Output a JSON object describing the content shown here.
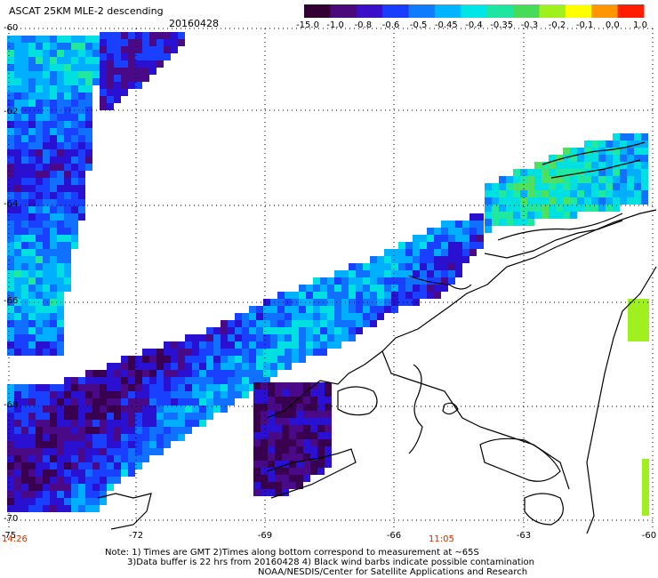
{
  "header": {
    "title": "ASCAT 25KM MLE-2 descending",
    "date": "20160428"
  },
  "colorbar": {
    "labels": [
      "-15.0",
      "-1.0",
      "-0.8",
      "-0.6",
      "-0.5",
      "-0.45",
      "-0.4",
      "-0.35",
      "-0.3",
      "-0.2",
      "-0.1",
      "0.0",
      "1.0"
    ],
    "colors": [
      "#330033",
      "#4b0a7a",
      "#3b0fc8",
      "#1a3cff",
      "#0f7cff",
      "#00b4ff",
      "#00e6e6",
      "#1ee6a0",
      "#46dc5a",
      "#a0f01e",
      "#ffff00",
      "#ff9600",
      "#ff1e00"
    ]
  },
  "axes": {
    "lat_labels": [
      "-60",
      "-62",
      "-64",
      "-66",
      "-68",
      "-70"
    ],
    "lon_labels": [
      "-75",
      "-72",
      "-69",
      "-66",
      "-63",
      "-60"
    ],
    "time_labels": [
      "14:26",
      "11:05"
    ]
  },
  "notes": {
    "line1": "Note: 1) Times are GMT 2)Times along bottom correspond to measurement at ~65S",
    "line2": "3)Data buffer is 22 hrs from 20160428 4) Black wind barbs indicate possible contamination",
    "line3": "NOAA/NESDIS/Center for Satellite Applications and Research"
  }
}
